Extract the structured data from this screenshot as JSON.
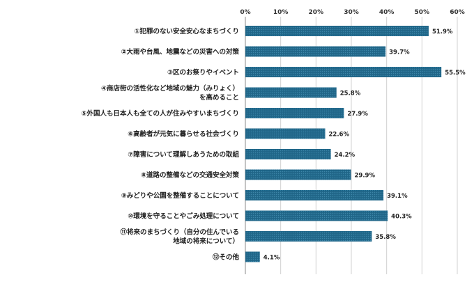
{
  "chart_data": {
    "type": "bar",
    "orientation": "horizontal",
    "categories": [
      [
        "①犯罪のない安全安心なまちづくり"
      ],
      [
        "②大雨や台風、地震などの災害への対策"
      ],
      [
        "③区のお祭りやイベント"
      ],
      [
        "④商店街の活性化など地域の魅力（みりょく）",
        "を高めること"
      ],
      [
        "⑤外国人も日本人も全ての人が住みやすいまちづくり"
      ],
      [
        "⑥高齢者が元気に暮らせる社会づくり"
      ],
      [
        "⑦障害について理解しあうための取組"
      ],
      [
        "⑧道路の整備などの交通安全対策"
      ],
      [
        "⑨みどりや公園を整備することについて"
      ],
      [
        "⑩環境を守ることやごみ処理について"
      ],
      [
        "⑪将来のまちづくり（自分の住んでいる",
        "地域の将来について）"
      ],
      [
        "⑫その他"
      ]
    ],
    "values": [
      51.9,
      39.7,
      55.5,
      25.8,
      27.9,
      22.6,
      24.2,
      29.9,
      39.1,
      40.3,
      35.8,
      4.1
    ],
    "value_labels": [
      "51.9%",
      "39.7%",
      "55.5%",
      "25.8%",
      "27.9%",
      "22.6%",
      "24.2%",
      "29.9%",
      "39.1%",
      "40.3%",
      "35.8%",
      "4.1%"
    ],
    "xlim": [
      0,
      60
    ],
    "xticks": [
      "0%",
      "10%",
      "20%",
      "30%",
      "40%",
      "50%",
      "60%"
    ],
    "grid": true,
    "bar_color": "#236b8e",
    "title": "",
    "xlabel": "",
    "ylabel": ""
  }
}
